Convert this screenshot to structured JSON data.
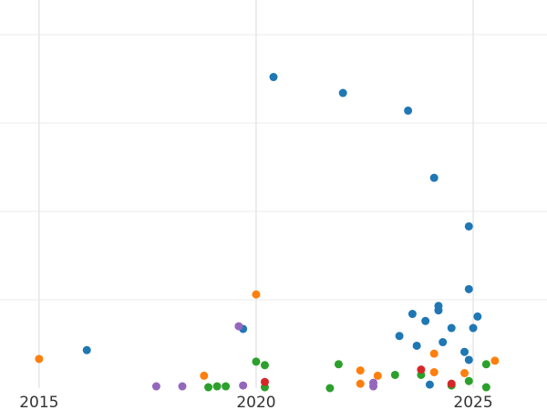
{
  "chart_data": {
    "type": "scatter",
    "title": "",
    "xlabel": "",
    "ylabel": "",
    "xlim": [
      2014.1,
      2026.7
    ],
    "ylim": [
      0,
      400
    ],
    "x_ticks": [
      2015,
      2020,
      2025
    ],
    "x_tick_labels": [
      "2015",
      "2020",
      "2025"
    ],
    "y_gridlines": [
      100,
      200,
      300,
      400
    ],
    "grid": true,
    "legend": "none",
    "series": [
      {
        "color": "#1f77b4",
        "points": [
          {
            "x": 2016.1,
            "y": 43
          },
          {
            "x": 2019.7,
            "y": 67
          },
          {
            "x": 2020.4,
            "y": 352
          },
          {
            "x": 2022.0,
            "y": 334
          },
          {
            "x": 2023.5,
            "y": 314
          },
          {
            "x": 2024.1,
            "y": 238
          },
          {
            "x": 2024.9,
            "y": 183
          },
          {
            "x": 2024.9,
            "y": 112
          },
          {
            "x": 2024.2,
            "y": 93
          },
          {
            "x": 2024.2,
            "y": 88
          },
          {
            "x": 2023.6,
            "y": 84
          },
          {
            "x": 2025.1,
            "y": 81
          },
          {
            "x": 2023.9,
            "y": 76
          },
          {
            "x": 2024.5,
            "y": 68
          },
          {
            "x": 2025.0,
            "y": 68
          },
          {
            "x": 2023.3,
            "y": 59
          },
          {
            "x": 2024.3,
            "y": 52
          },
          {
            "x": 2023.7,
            "y": 48
          },
          {
            "x": 2024.8,
            "y": 41
          },
          {
            "x": 2024.9,
            "y": 32
          },
          {
            "x": 2024.0,
            "y": 4
          }
        ]
      },
      {
        "color": "#ff7f0e",
        "points": [
          {
            "x": 2015.0,
            "y": 33
          },
          {
            "x": 2020.0,
            "y": 106
          },
          {
            "x": 2018.8,
            "y": 14
          },
          {
            "x": 2022.4,
            "y": 20
          },
          {
            "x": 2022.8,
            "y": 14
          },
          {
            "x": 2022.4,
            "y": 5
          },
          {
            "x": 2024.1,
            "y": 39
          },
          {
            "x": 2024.1,
            "y": 18
          },
          {
            "x": 2024.8,
            "y": 17
          },
          {
            "x": 2025.5,
            "y": 31
          }
        ]
      },
      {
        "color": "#2ca02c",
        "points": [
          {
            "x": 2018.9,
            "y": 1
          },
          {
            "x": 2019.1,
            "y": 2
          },
          {
            "x": 2019.3,
            "y": 2
          },
          {
            "x": 2020.0,
            "y": 30
          },
          {
            "x": 2020.2,
            "y": 26
          },
          {
            "x": 2020.2,
            "y": 1
          },
          {
            "x": 2021.9,
            "y": 27
          },
          {
            "x": 2021.7,
            "y": 0
          },
          {
            "x": 2023.2,
            "y": 15
          },
          {
            "x": 2023.8,
            "y": 15
          },
          {
            "x": 2024.9,
            "y": 8
          },
          {
            "x": 2025.3,
            "y": 27
          },
          {
            "x": 2025.3,
            "y": 1
          },
          {
            "x": 2024.5,
            "y": 3
          }
        ]
      },
      {
        "color": "#d62728",
        "points": [
          {
            "x": 2020.2,
            "y": 7
          },
          {
            "x": 2023.8,
            "y": 21
          },
          {
            "x": 2024.5,
            "y": 5
          }
        ]
      },
      {
        "color": "#9467bd",
        "points": [
          {
            "x": 2017.7,
            "y": 2
          },
          {
            "x": 2018.3,
            "y": 2
          },
          {
            "x": 2019.6,
            "y": 70
          },
          {
            "x": 2019.7,
            "y": 3
          },
          {
            "x": 2022.7,
            "y": 6
          },
          {
            "x": 2022.7,
            "y": 2
          }
        ]
      }
    ]
  }
}
